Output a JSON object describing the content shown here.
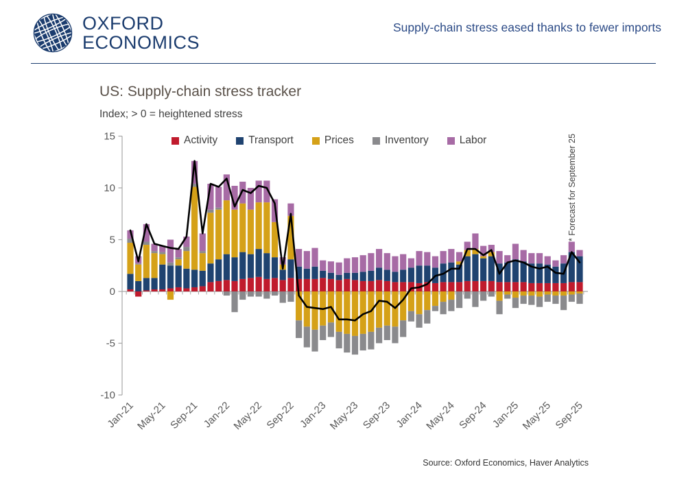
{
  "header": {
    "logo": {
      "line1": "OXFORD",
      "line2": "ECONOMICS"
    },
    "headline": "Supply-chain stress eased thanks to fewer imports"
  },
  "chart": {
    "title": "US: Supply-chain stress tracker",
    "subtitle": "Index; > 0 = heightened stress",
    "forecast_note": "* Forecast for September 25",
    "source": "Source: Oxford Economics, Haver Analytics"
  },
  "colors": {
    "brand_navy": "#1B3C6E",
    "headline_blue": "#2B4A86",
    "axis": "#A6A6A6",
    "tick_text": "#595959",
    "title_text": "#595048"
  },
  "chart_data": {
    "type": "bar",
    "stacked": true,
    "overlay": "line",
    "title": "US: Supply-chain stress tracker",
    "subtitle": "Index; > 0 = heightened stress",
    "ylim": [
      -10,
      15
    ],
    "yticks": [
      15,
      10,
      5,
      0,
      -5,
      -10
    ],
    "grid": false,
    "legend_position": "top",
    "x_tick_labels": [
      "Jan-21",
      "May-21",
      "Sep-21",
      "Jan-22",
      "May-22",
      "Sep-22",
      "Jan-23",
      "May-23",
      "Sep-23",
      "Jan-24",
      "May-24",
      "Sep-24",
      "Jan-25",
      "May-25",
      "Sep-25"
    ],
    "categories": [
      "Jan-21",
      "Feb-21",
      "Mar-21",
      "Apr-21",
      "May-21",
      "Jun-21",
      "Jul-21",
      "Aug-21",
      "Sep-21",
      "Oct-21",
      "Nov-21",
      "Dec-21",
      "Jan-22",
      "Feb-22",
      "Mar-22",
      "Apr-22",
      "May-22",
      "Jun-22",
      "Jul-22",
      "Aug-22",
      "Sep-22",
      "Oct-22",
      "Nov-22",
      "Dec-22",
      "Jan-23",
      "Feb-23",
      "Mar-23",
      "Apr-23",
      "May-23",
      "Jun-23",
      "Jul-23",
      "Aug-23",
      "Sep-23",
      "Oct-23",
      "Nov-23",
      "Dec-23",
      "Jan-24",
      "Feb-24",
      "Mar-24",
      "Apr-24",
      "May-24",
      "Jun-24",
      "Jul-24",
      "Aug-24",
      "Sep-24",
      "Oct-24",
      "Nov-24",
      "Dec-24",
      "Jan-25",
      "Feb-25",
      "Mar-25",
      "Apr-25",
      "May-25",
      "Jun-25",
      "Jul-25",
      "Aug-25",
      "Sep-25"
    ],
    "series": [
      {
        "name": "Activity",
        "color": "#C01B2D",
        "values": [
          0.2,
          -0.5,
          0.1,
          0.2,
          0.2,
          0.3,
          0.4,
          0.3,
          0.4,
          0.5,
          0.9,
          1.0,
          1.1,
          1.0,
          1.2,
          1.3,
          1.4,
          1.2,
          1.3,
          1.1,
          1.3,
          1.2,
          1.2,
          1.2,
          1.3,
          1.2,
          1.1,
          1.2,
          1.1,
          1.0,
          1.0,
          1.1,
          1.0,
          0.9,
          0.9,
          0.9,
          0.8,
          0.9,
          0.8,
          0.9,
          0.9,
          0.9,
          1.0,
          1.0,
          1.0,
          1.0,
          0.9,
          0.9,
          0.9,
          0.9,
          0.8,
          0.8,
          0.8,
          0.8,
          0.8,
          0.9,
          0.9
        ]
      },
      {
        "name": "Transport",
        "color": "#1F4370",
        "values": [
          1.5,
          1.0,
          1.2,
          1.1,
          2.4,
          2.2,
          2.1,
          1.9,
          1.7,
          1.5,
          1.8,
          2.1,
          2.5,
          2.3,
          2.6,
          2.3,
          2.7,
          2.5,
          2.0,
          1.0,
          1.8,
          1.2,
          1.0,
          1.2,
          0.7,
          0.6,
          0.5,
          0.6,
          0.7,
          0.9,
          1.0,
          1.2,
          1.1,
          1.0,
          1.2,
          1.4,
          1.7,
          1.6,
          1.5,
          1.8,
          1.9,
          1.7,
          2.4,
          2.6,
          2.2,
          2.4,
          1.8,
          1.9,
          2.2,
          2.0,
          1.9,
          1.9,
          1.8,
          1.6,
          1.9,
          2.9,
          2.5
        ]
      },
      {
        "name": "Prices",
        "color": "#D5A118",
        "values": [
          3.0,
          1.6,
          3.2,
          2.4,
          1.0,
          -0.8,
          0.6,
          1.7,
          8.0,
          1.7,
          4.9,
          4.8,
          5.2,
          4.6,
          4.7,
          4.3,
          4.5,
          4.9,
          3.4,
          0.5,
          4.2,
          -2.8,
          -3.4,
          -3.7,
          -3.3,
          -3.0,
          -3.9,
          -4.1,
          -4.3,
          -4.1,
          -3.9,
          -3.5,
          -3.3,
          -3.4,
          -2.8,
          -1.9,
          -2.2,
          -1.8,
          -1.4,
          -1.0,
          -0.8,
          0.3,
          0.6,
          0.5,
          0.2,
          0.4,
          -0.9,
          -0.3,
          -0.6,
          -0.4,
          -0.4,
          -0.5,
          -0.3,
          -0.4,
          -0.4,
          -0.3,
          -0.2
        ]
      },
      {
        "name": "Inventory",
        "color": "#8A8A8D",
        "values": [
          0.4,
          0.1,
          0.3,
          0.2,
          0.2,
          0.3,
          0.2,
          0.4,
          0.3,
          0.2,
          0.3,
          0.2,
          -0.4,
          -2.0,
          -0.8,
          -0.5,
          -0.5,
          -0.7,
          -0.4,
          -1.1,
          -1.0,
          -1.7,
          -2.0,
          -2.1,
          -1.4,
          -1.4,
          -1.6,
          -1.8,
          -1.8,
          -1.6,
          -1.7,
          -1.5,
          -1.4,
          -1.6,
          -1.6,
          -1.0,
          -1.3,
          -1.3,
          -0.5,
          -1.2,
          -1.1,
          -1.6,
          -0.7,
          -1.5,
          -0.9,
          -0.5,
          -1.3,
          -0.4,
          -1.0,
          -0.8,
          -0.9,
          -1.0,
          -0.7,
          -0.8,
          -1.4,
          -0.7,
          -1.0
        ]
      },
      {
        "name": "Labor",
        "color": "#A76BA5",
        "values": [
          0.8,
          0.7,
          1.7,
          0.7,
          0.6,
          2.2,
          0.8,
          1.0,
          2.2,
          1.7,
          2.5,
          2.0,
          2.5,
          2.3,
          2.1,
          2.1,
          2.1,
          2.1,
          2.2,
          0.7,
          1.2,
          1.7,
          1.7,
          1.8,
          1.0,
          1.1,
          1.2,
          1.4,
          1.5,
          1.6,
          1.7,
          1.8,
          1.6,
          1.5,
          1.5,
          0.9,
          1.4,
          1.3,
          1.1,
          1.2,
          1.3,
          0.9,
          0.8,
          1.5,
          1.0,
          0.7,
          1.2,
          0.7,
          1.5,
          1.1,
          1.0,
          1.0,
          0.8,
          0.6,
          0.8,
          1.0,
          0.6
        ]
      }
    ],
    "line_series": {
      "name": "Total",
      "color": "#000000",
      "values": [
        5.9,
        2.9,
        6.5,
        4.6,
        4.4,
        4.2,
        4.1,
        5.3,
        12.6,
        5.6,
        10.4,
        10.1,
        10.9,
        8.2,
        9.8,
        9.5,
        10.2,
        10.0,
        8.5,
        2.2,
        7.5,
        -0.4,
        -1.5,
        -1.6,
        -1.7,
        -1.5,
        -2.7,
        -2.7,
        -2.8,
        -2.2,
        -1.9,
        -0.9,
        -1.0,
        -1.6,
        -0.8,
        0.3,
        0.4,
        0.7,
        1.5,
        1.7,
        2.2,
        2.2,
        4.1,
        4.1,
        3.5,
        4.0,
        1.7,
        2.8,
        3.0,
        2.8,
        2.4,
        2.2,
        2.4,
        1.8,
        1.7,
        3.8,
        2.8
      ]
    },
    "annotations": [
      "* Forecast for September 25"
    ]
  }
}
